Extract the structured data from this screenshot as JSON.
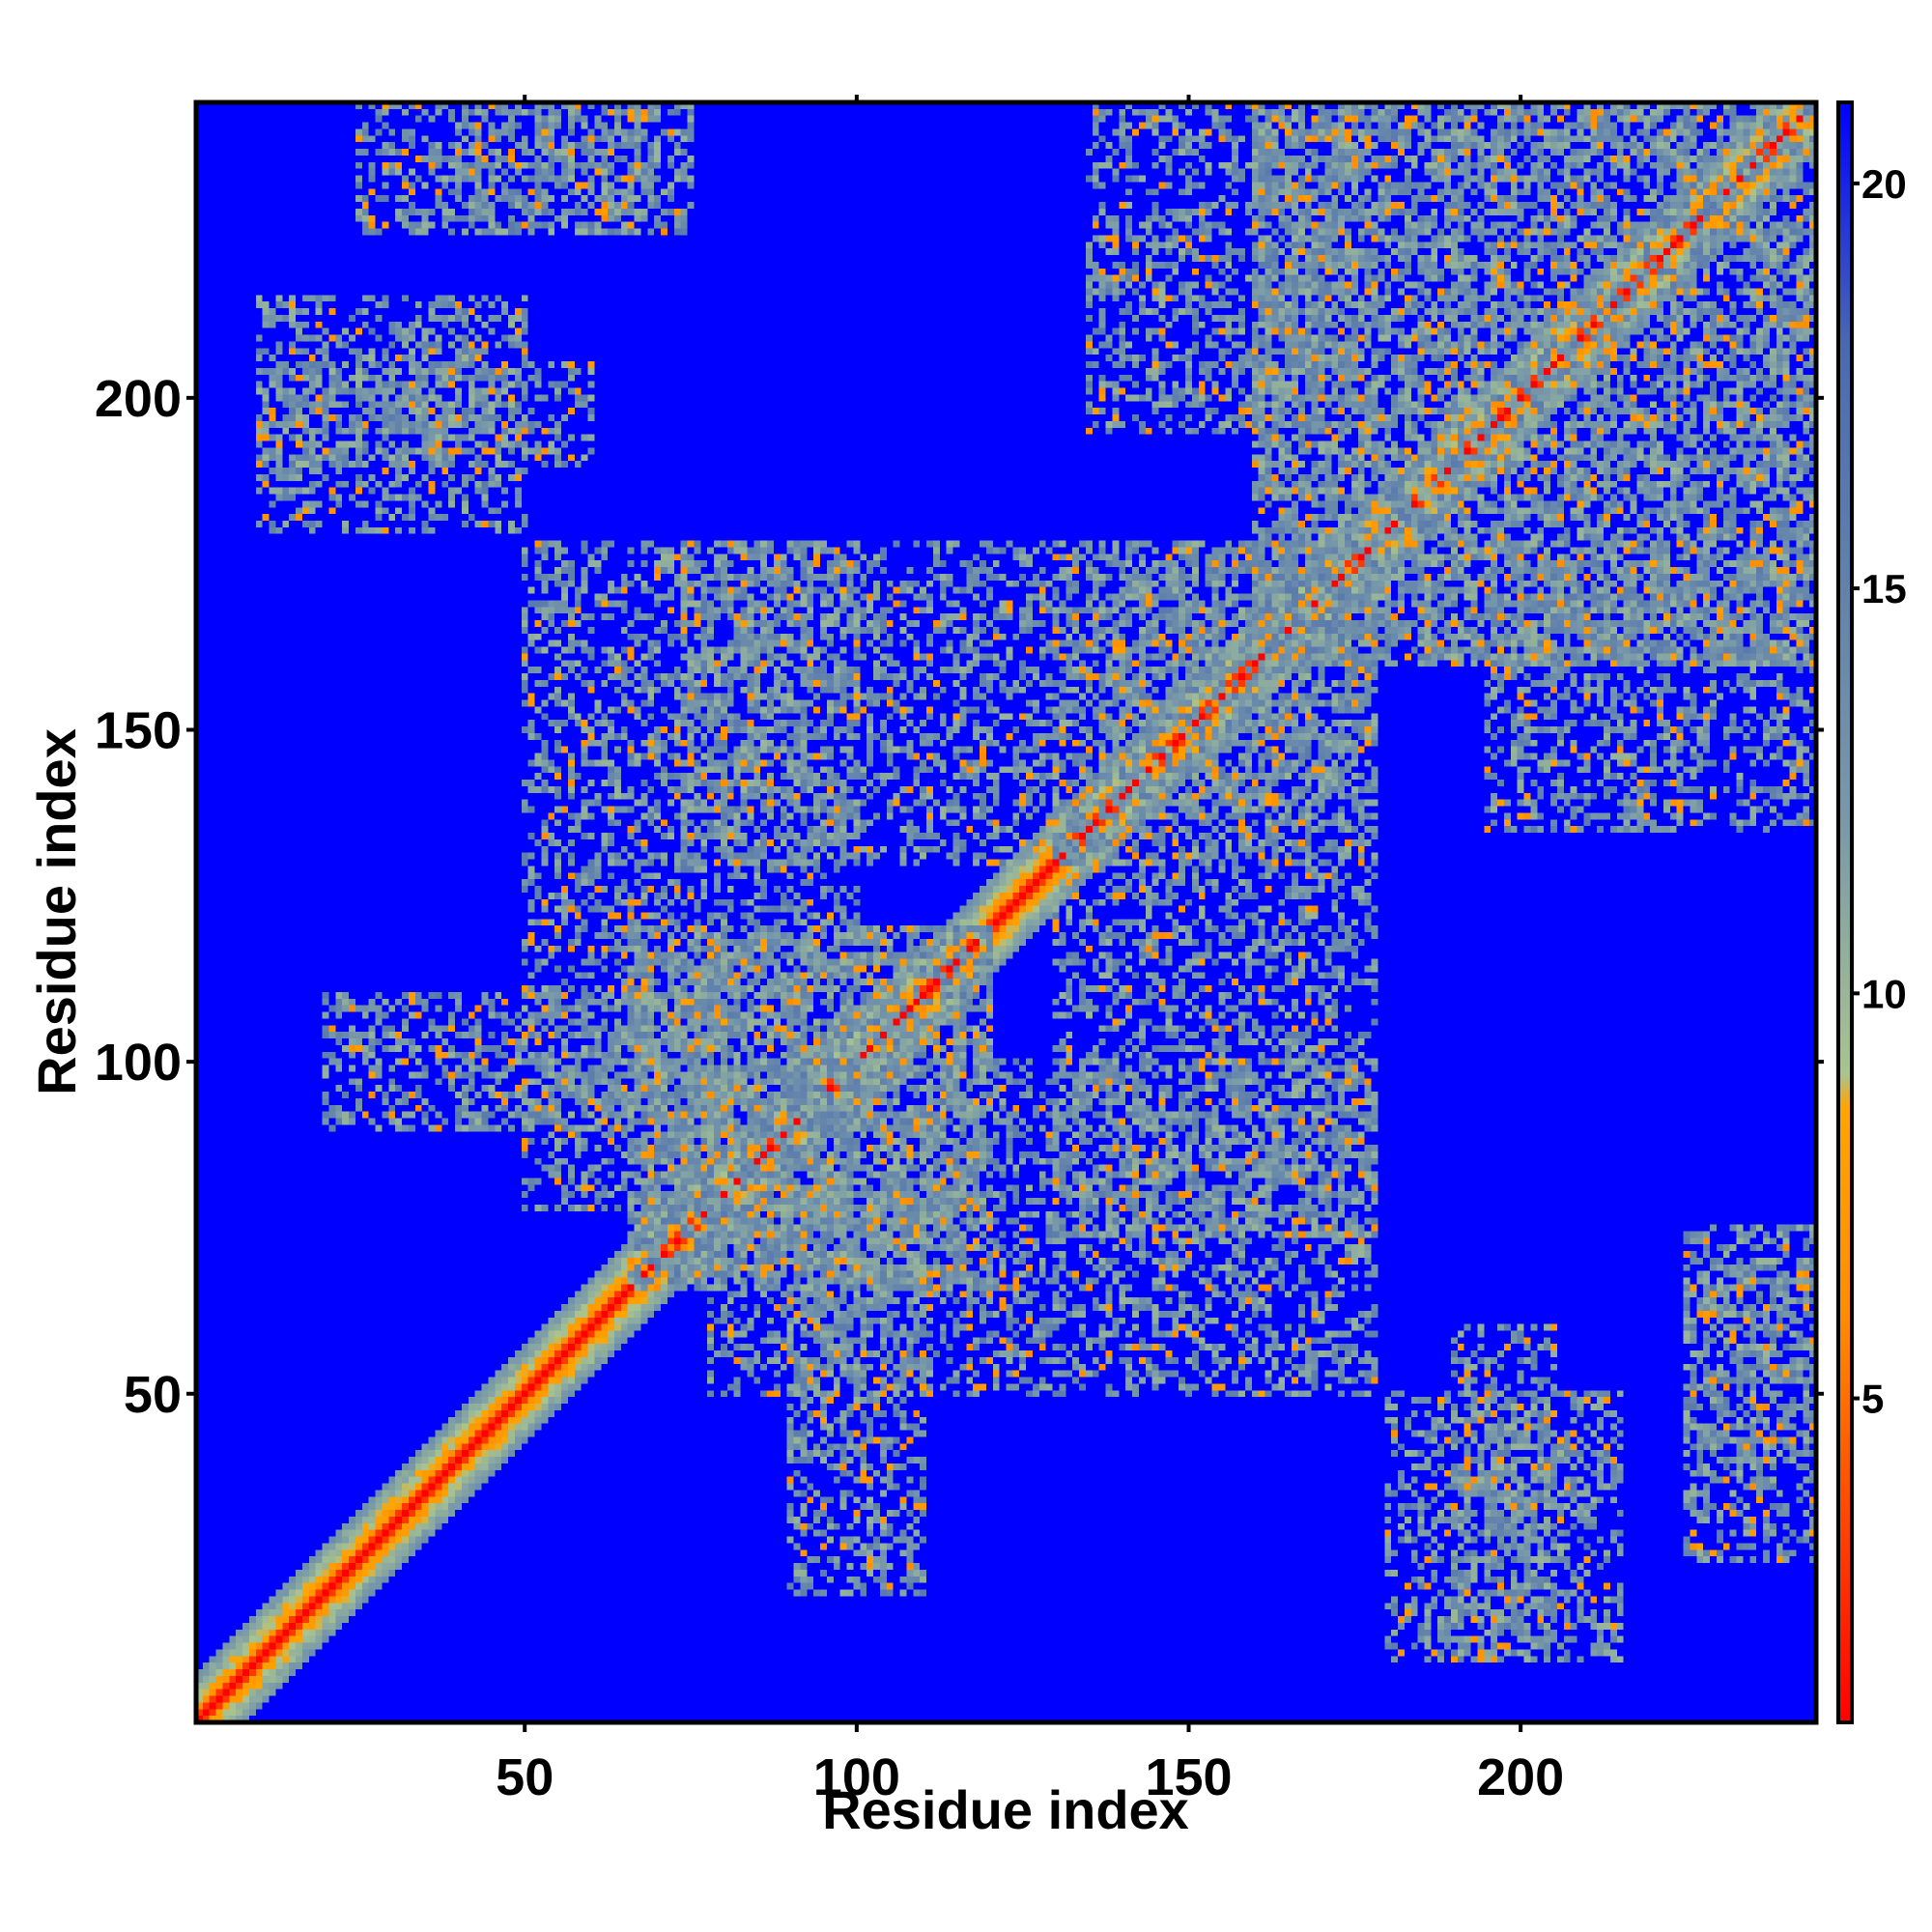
{
  "chart_data": {
    "type": "heatmap",
    "title": "",
    "xlabel": "Residue index",
    "ylabel": "Residue index",
    "n_residues": 244,
    "xlim": [
      1,
      244
    ],
    "ylim": [
      1,
      244
    ],
    "x_ticks": [
      50,
      100,
      150,
      200
    ],
    "y_ticks": [
      50,
      100,
      150,
      200
    ],
    "colorbar": {
      "range": [
        1,
        21
      ],
      "ticks": [
        5,
        10,
        15,
        20
      ],
      "colors": [
        "#ff0000",
        "#ff8c00",
        "#ffa500",
        "#a9c48f",
        "#7a9aa9",
        "#4a6ab0",
        "#0000ff"
      ],
      "stops": [
        0.0,
        0.25,
        0.38,
        0.4,
        0.55,
        0.85,
        1.0
      ]
    },
    "background_color": "#0000ff",
    "diagonal_color": "#ff0000",
    "contact_regions": [
      {
        "x": [
          66,
          120
        ],
        "y": [
          66,
          120
        ]
      },
      {
        "x": [
          50,
          100
        ],
        "y": [
          78,
          178
        ]
      },
      {
        "x": [
          130,
          178
        ],
        "y": [
          74,
          178
        ]
      },
      {
        "x": [
          160,
          244
        ],
        "y": [
          160,
          244
        ]
      },
      {
        "x": [
          135,
          175
        ],
        "y": [
          195,
          244
        ]
      },
      {
        "x": [
          10,
          50
        ],
        "y": [
          180,
          215
        ]
      },
      {
        "x": [
          25,
          75
        ],
        "y": [
          225,
          244
        ]
      },
      {
        "x": [
          90,
          110
        ],
        "y": [
          20,
          80
        ]
      },
      {
        "x": [
          190,
          205
        ],
        "y": [
          10,
          60
        ]
      },
      {
        "x": [
          225,
          244
        ],
        "y": [
          40,
          70
        ]
      }
    ]
  }
}
